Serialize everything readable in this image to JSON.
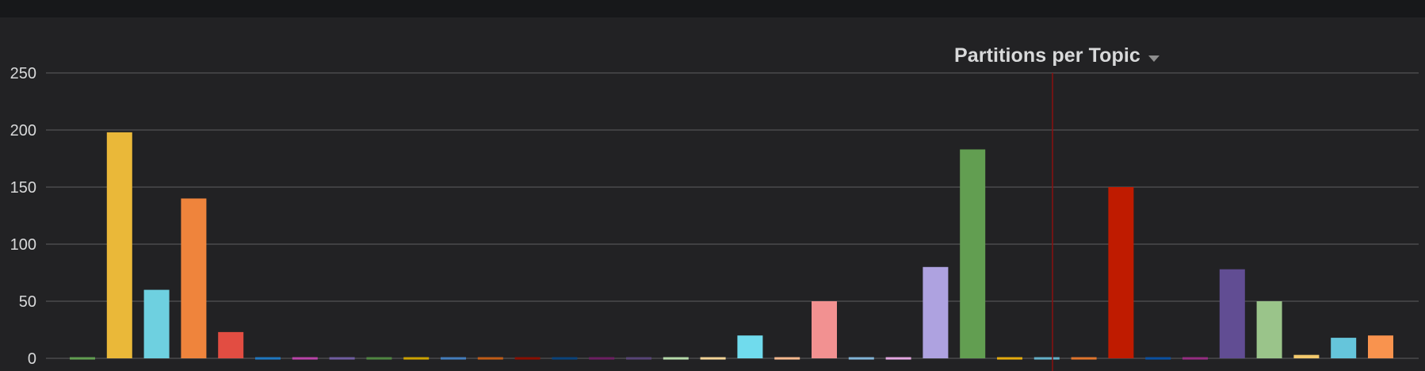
{
  "panel": {
    "title": "Partitions per Topic"
  },
  "chart_data": {
    "type": "bar",
    "title": "Partitions per Topic",
    "xlabel": "",
    "ylabel": "",
    "ylim": [
      0,
      250
    ],
    "yticks": [
      0,
      50,
      100,
      150,
      200,
      250
    ],
    "grid": true,
    "legend": "none",
    "values": [
      1,
      198,
      60,
      140,
      23,
      1,
      1,
      1,
      1,
      1,
      1,
      1,
      1,
      1,
      1,
      1,
      1,
      1,
      20,
      1,
      50,
      1,
      1,
      80,
      183,
      1,
      1,
      1,
      150,
      1,
      1,
      78,
      50,
      3,
      18,
      20
    ],
    "colors": [
      "#629e51",
      "#eab839",
      "#6ed0e0",
      "#ef843c",
      "#e24d42",
      "#1f78c1",
      "#ba43a9",
      "#705da0",
      "#508642",
      "#cca300",
      "#447ebc",
      "#c15c17",
      "#890f02",
      "#0a437c",
      "#6d1f62",
      "#584477",
      "#b7dbab",
      "#f4d598",
      "#70dbed",
      "#f9ba8f",
      "#f29191",
      "#82b5d8",
      "#e5a8e2",
      "#aea2e0",
      "#629e51",
      "#e5ac0e",
      "#64b0c8",
      "#e0752d",
      "#bf1b00",
      "#0a50a1",
      "#962d82",
      "#614d93",
      "#9ac48a",
      "#f2c96d",
      "#65c5db",
      "#f9934e"
    ],
    "annotation_color": "#8a0f0f"
  }
}
